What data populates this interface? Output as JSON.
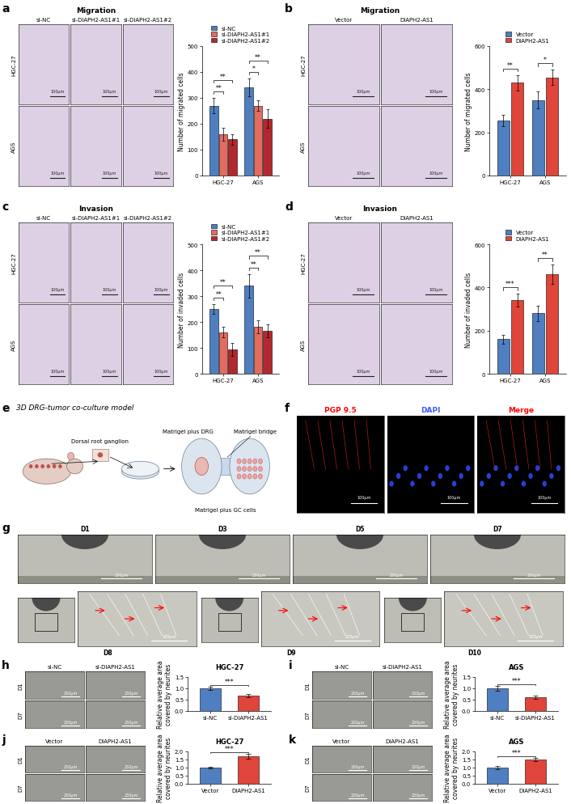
{
  "chart_data": [
    {
      "type": "bar",
      "ylabel": "Number of migrated cells",
      "categories": [
        "HGC-27",
        "AGS"
      ],
      "series": [
        {
          "name": "si-NC",
          "color": "#4f7fc0",
          "values": [
            270,
            340
          ],
          "errors": [
            30,
            35
          ]
        },
        {
          "name": "si-DIAPH2-AS1#1",
          "color": "#e46b5f",
          "values": [
            160,
            270
          ],
          "errors": [
            25,
            20
          ]
        },
        {
          "name": "si-DIAPH2-AS1#2",
          "color": "#b3282d",
          "values": [
            140,
            220
          ],
          "errors": [
            20,
            35
          ]
        }
      ],
      "ylim": [
        0,
        500
      ],
      "yticks": [
        0,
        100,
        200,
        300,
        400,
        500
      ],
      "legend": "top",
      "grid": false,
      "significance": [
        {
          "category": 0,
          "from": 0,
          "to": 1,
          "text": "**"
        },
        {
          "category": 0,
          "from": 0,
          "to": 2,
          "text": "**"
        },
        {
          "category": 1,
          "from": 0,
          "to": 1,
          "text": "*"
        },
        {
          "category": 1,
          "from": 0,
          "to": 2,
          "text": "**"
        }
      ]
    },
    {
      "type": "bar",
      "ylabel": "Number of migrated cells",
      "categories": [
        "HGC-27",
        "AGS"
      ],
      "series": [
        {
          "name": "Vector",
          "color": "#4f7fc0",
          "values": [
            255,
            350
          ],
          "errors": [
            25,
            40
          ]
        },
        {
          "name": "DIAPH2-AS1",
          "color": "#e0453a",
          "values": [
            430,
            455
          ],
          "errors": [
            35,
            35
          ]
        }
      ],
      "ylim": [
        0,
        600
      ],
      "yticks": [
        0,
        200,
        400,
        600
      ],
      "legend": "top",
      "grid": false,
      "significance": [
        {
          "category": 0,
          "from": 0,
          "to": 1,
          "text": "**"
        },
        {
          "category": 1,
          "from": 0,
          "to": 1,
          "text": "*"
        }
      ]
    },
    {
      "type": "bar",
      "ylabel": "Number of invaded cells",
      "categories": [
        "HGC-27",
        "AGS"
      ],
      "series": [
        {
          "name": "si-NC",
          "color": "#4f7fc0",
          "values": [
            250,
            340
          ],
          "errors": [
            20,
            45
          ]
        },
        {
          "name": "si-DIAPH2-AS1#1",
          "color": "#e46b5f",
          "values": [
            160,
            180
          ],
          "errors": [
            20,
            25
          ]
        },
        {
          "name": "si-DIAPH2-AS1#2",
          "color": "#b3282d",
          "values": [
            95,
            165
          ],
          "errors": [
            25,
            25
          ]
        }
      ],
      "ylim": [
        0,
        500
      ],
      "yticks": [
        0,
        100,
        200,
        300,
        400,
        500
      ],
      "legend": "top",
      "grid": false,
      "significance": [
        {
          "category": 0,
          "from": 0,
          "to": 1,
          "text": "**"
        },
        {
          "category": 0,
          "from": 0,
          "to": 2,
          "text": "**"
        },
        {
          "category": 1,
          "from": 0,
          "to": 1,
          "text": "**"
        },
        {
          "category": 1,
          "from": 0,
          "to": 2,
          "text": "**"
        }
      ]
    },
    {
      "type": "bar",
      "ylabel": "Number of invaded cells",
      "categories": [
        "HGC-27",
        "AGS"
      ],
      "series": [
        {
          "name": "Vector",
          "color": "#4f7fc0",
          "values": [
            160,
            280
          ],
          "errors": [
            20,
            35
          ]
        },
        {
          "name": "DIAPH2-AS1",
          "color": "#e0453a",
          "values": [
            340,
            460
          ],
          "errors": [
            30,
            45
          ]
        }
      ],
      "ylim": [
        0,
        600
      ],
      "yticks": [
        0,
        200,
        400,
        600
      ],
      "legend": "top",
      "grid": false,
      "significance": [
        {
          "category": 0,
          "from": 0,
          "to": 1,
          "text": "***"
        },
        {
          "category": 1,
          "from": 0,
          "to": 1,
          "text": "**"
        }
      ]
    },
    {
      "type": "bar",
      "title": "HGC-27",
      "ylabel": "Relative average area\ncovered by neurites",
      "categories": [
        "si-NC",
        "si-DIAPH2-AS1"
      ],
      "values": [
        1.0,
        0.67
      ],
      "errors": [
        0.08,
        0.07
      ],
      "colors": [
        "#4f7fc0",
        "#e0453a"
      ],
      "ylim": [
        0,
        1.5
      ],
      "yticks": [
        {
          "value": 0,
          "label": "0.0"
        },
        0.5,
        {
          "value": 1,
          "label": "1.0"
        },
        1.5
      ],
      "grid": false,
      "significance": [
        {
          "from": 0,
          "to": 1,
          "text": "***"
        }
      ]
    },
    {
      "type": "bar",
      "title": "AGS",
      "ylabel": "Relative average area\ncovered by neurites",
      "categories": [
        "si-NC",
        "si-DIAPH2-AS1"
      ],
      "values": [
        1.0,
        0.6
      ],
      "errors": [
        0.1,
        0.07
      ],
      "colors": [
        "#4f7fc0",
        "#e0453a"
      ],
      "ylim": [
        0,
        1.5
      ],
      "yticks": [
        {
          "value": 0,
          "label": "0.0"
        },
        0.5,
        {
          "value": 1,
          "label": "1.0"
        },
        1.5
      ],
      "grid": false,
      "significance": [
        {
          "from": 0,
          "to": 1,
          "text": "***"
        }
      ]
    },
    {
      "type": "bar",
      "title": "HGC-27",
      "ylabel": "Relative average area\ncovered by neurites",
      "categories": [
        "Vector",
        "DIAPH2-AS1"
      ],
      "values": [
        1.0,
        1.7
      ],
      "errors": [
        0.06,
        0.15
      ],
      "colors": [
        "#4f7fc0",
        "#e0453a"
      ],
      "ylim": [
        0,
        2.0
      ],
      "yticks": [
        {
          "value": 0,
          "label": "0.0"
        },
        0.5,
        {
          "value": 1,
          "label": "1.0"
        },
        1.5,
        {
          "value": 2,
          "label": "2.0"
        }
      ],
      "grid": false,
      "significance": [
        {
          "from": 0,
          "to": 1,
          "text": "***"
        }
      ]
    },
    {
      "type": "bar",
      "title": "AGS",
      "ylabel": "Relative average area\ncovered by neurites",
      "categories": [
        "Vector",
        "DIAPH2-AS1"
      ],
      "values": [
        1.0,
        1.48
      ],
      "errors": [
        0.08,
        0.1
      ],
      "colors": [
        "#4f7fc0",
        "#e0453a"
      ],
      "ylim": [
        0,
        2.0
      ],
      "yticks": [
        {
          "value": 0,
          "label": "0.0"
        },
        0.5,
        {
          "value": 1,
          "label": "1.0"
        },
        1.5,
        {
          "value": 2,
          "label": "2.0"
        }
      ],
      "grid": false,
      "significance": [
        {
          "from": 0,
          "to": 1,
          "text": "***"
        }
      ]
    }
  ],
  "figure": {
    "panels": [
      {
        "letter": "a",
        "title": "Migration",
        "columns": [
          "si-NC",
          "si-DIAPH2-AS1#1",
          "si-DIAPH2-AS1#2"
        ],
        "rows": [
          "HGC-27",
          "AGS"
        ],
        "scale": "100μm"
      },
      {
        "letter": "b",
        "title": "Migration",
        "columns": [
          "Vector",
          "DIAPH2-AS1"
        ],
        "rows": [
          "HGC-27",
          "AGS"
        ],
        "scale": "100μm"
      },
      {
        "letter": "c",
        "title": "Invasion",
        "columns": [
          "si-NC",
          "si-DIAPH2-AS1#1",
          "si-DIAPH2-AS1#2"
        ],
        "rows": [
          "HGC-27",
          "AGS"
        ],
        "scale": "100μm"
      },
      {
        "letter": "d",
        "title": "Invasion",
        "columns": [
          "Vector",
          "DIAPH2-AS1"
        ],
        "rows": [
          "HGC-27",
          "AGS"
        ],
        "scale": "100μm"
      },
      {
        "letter": "e",
        "title": "3D DRG-tumor co-culture model",
        "labels": [
          "Dorsal root ganglion",
          "Matrigel plus DRG",
          "Matrigel bridge",
          "Matrigel plus GC cells"
        ]
      },
      {
        "letter": "f",
        "images": [
          "PGP 9.5",
          "DAPI",
          "Merge"
        ],
        "scale": "100μm"
      },
      {
        "letter": "g",
        "top": [
          "D1",
          "D3",
          "D5",
          "D7"
        ],
        "bottom": [
          "D8",
          "D9",
          "D10"
        ],
        "scale_top": "250μm",
        "scale_bottom": "100μm"
      },
      {
        "letter": "h",
        "columns": [
          "si-NC",
          "si-DIAPH2-AS1"
        ],
        "rows": [
          "D1",
          "D7"
        ],
        "scale": "250μm"
      },
      {
        "letter": "i",
        "columns": [
          "si-NC",
          "si-DIAPH2-AS1"
        ],
        "rows": [
          "D1",
          "D7"
        ],
        "scale": "250μm"
      },
      {
        "letter": "j",
        "columns": [
          "Vector",
          "DIAPH2-AS1"
        ],
        "rows": [
          "D1",
          "D7"
        ],
        "scale": "250μm"
      },
      {
        "letter": "k",
        "columns": [
          "Vector",
          "DIAPH2-AS1"
        ],
        "rows": [
          "D1",
          "D7"
        ],
        "scale": "250μm"
      }
    ]
  }
}
